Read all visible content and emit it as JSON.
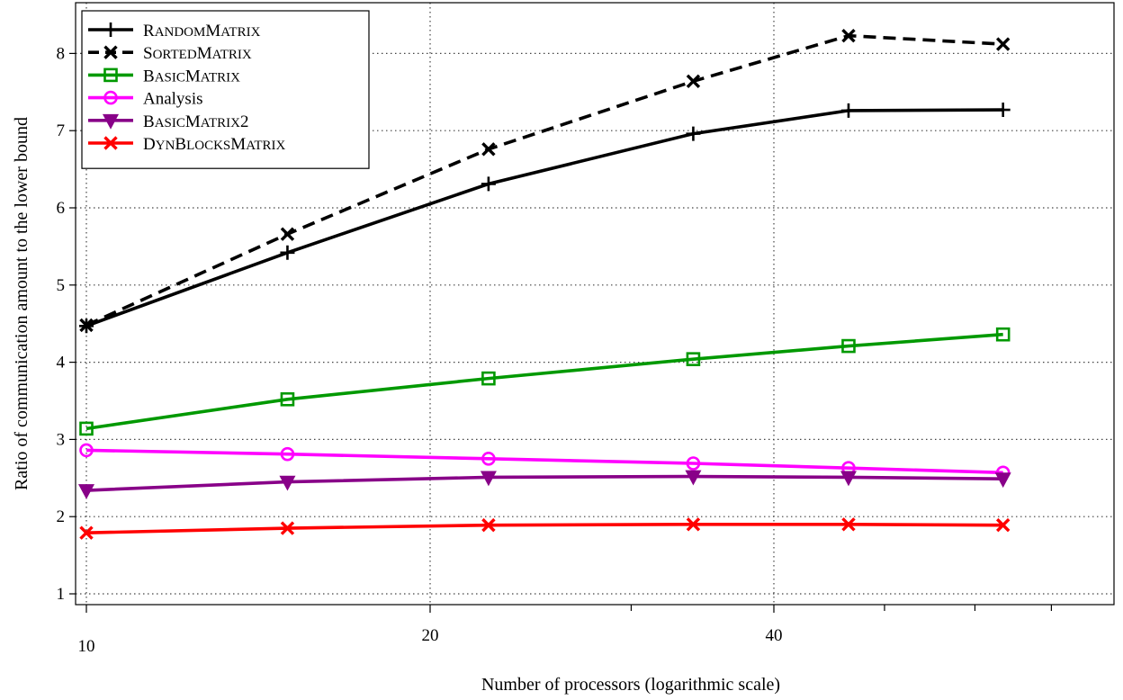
{
  "chart_data": {
    "type": "line",
    "xlabel": "Number of processors (logarithmic scale)",
    "ylabel": "Ratio of communication amount to the lower bound",
    "x_scale": "log",
    "xlim": [
      10,
      69.5
    ],
    "ylim": [
      0.85,
      8.65
    ],
    "x_ticks_labeled": [
      10,
      20,
      40
    ],
    "x_ticks_minor": [
      30,
      50,
      60,
      70
    ],
    "y_ticks": [
      1,
      2,
      3,
      4,
      5,
      6,
      7,
      8
    ],
    "grid": true,
    "legend_position": "top-left",
    "x": [
      10,
      15,
      22.5,
      34,
      46.5,
      63.5
    ],
    "series": [
      {
        "name": "RandomMatrix",
        "display_name": [
          "R",
          "ANDOM",
          "M",
          "ATRIX"
        ],
        "color": "#000000",
        "dash": "solid",
        "marker": "plus",
        "values": [
          4.47,
          5.42,
          6.31,
          6.96,
          7.26,
          7.27
        ]
      },
      {
        "name": "SortedMatrix",
        "display_name": [
          "S",
          "ORTED",
          "M",
          "ATRIX"
        ],
        "color": "#000000",
        "dash": "dashed",
        "marker": "x",
        "values": [
          4.48,
          5.66,
          6.76,
          7.64,
          8.23,
          8.12
        ]
      },
      {
        "name": "BasicMatrix",
        "display_name": [
          "B",
          "ASIC",
          "M",
          "ATRIX"
        ],
        "color": "#009900",
        "dash": "solid",
        "marker": "square",
        "values": [
          3.14,
          3.52,
          3.79,
          4.04,
          4.21,
          4.36
        ]
      },
      {
        "name": "Analysis",
        "display_name": [
          "Analysis"
        ],
        "color": "#ff00ff",
        "dash": "solid",
        "marker": "circle",
        "values": [
          2.86,
          2.81,
          2.75,
          2.69,
          2.63,
          2.57
        ]
      },
      {
        "name": "BasicMatrix2",
        "display_name": [
          "B",
          "ASIC",
          "M",
          "ATRIX",
          "2"
        ],
        "color": "#880088",
        "dash": "solid",
        "marker": "triangle-down",
        "values": [
          2.34,
          2.45,
          2.51,
          2.52,
          2.51,
          2.49
        ]
      },
      {
        "name": "DynBlocksMatrix",
        "display_name": [
          "D",
          "YN",
          "B",
          "LOCKS",
          "M",
          "ATRIX"
        ],
        "color": "#ff0000",
        "dash": "solid",
        "marker": "x",
        "values": [
          1.79,
          1.85,
          1.89,
          1.9,
          1.9,
          1.89
        ]
      }
    ]
  }
}
